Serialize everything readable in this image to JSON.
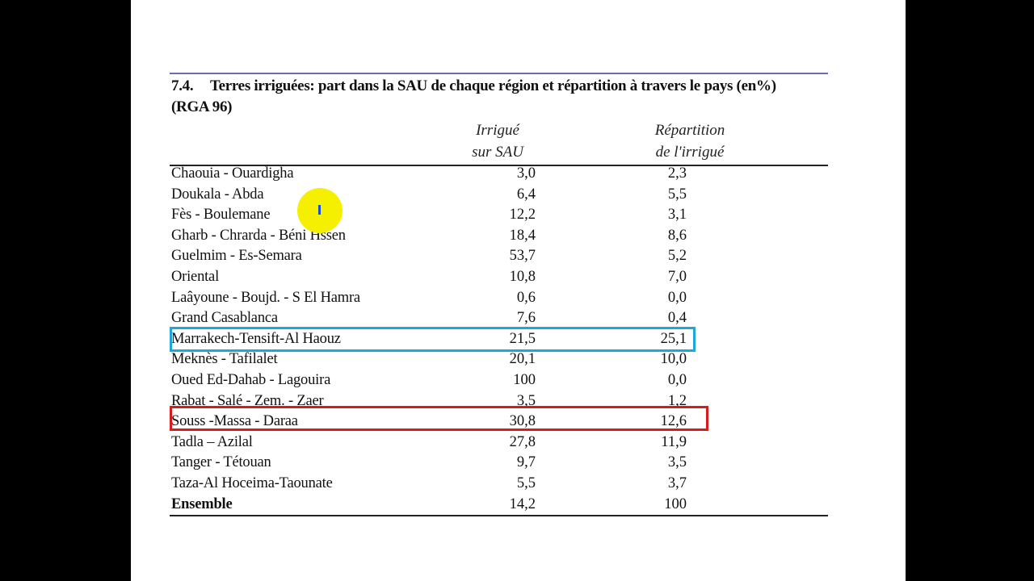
{
  "table": {
    "title_number": "7.4.",
    "title_text": "Terres irriguées: part dans la SAU de chaque région et répartition à travers le pays (en%)",
    "title_line2": "(RGA 96)",
    "col_irrigue_line1": "Irrigué",
    "col_irrigue_line2": "sur SAU",
    "col_repartition_line1": "Répartition",
    "col_repartition_line2": "de l'irrigué",
    "rows": [
      {
        "region": "Chaouia - Ouardigha",
        "irrigue": "3,0",
        "repartition": "2,3"
      },
      {
        "region": "Doukala - Abda",
        "irrigue": "6,4",
        "repartition": "5,5"
      },
      {
        "region": "Fès - Boulemane",
        "irrigue": "12,2",
        "repartition": "3,1"
      },
      {
        "region": "Gharb - Chrarda - Béni Hssen",
        "irrigue": "18,4",
        "repartition": "8,6"
      },
      {
        "region": "Guelmim - Es-Semara",
        "irrigue": "53,7",
        "repartition": "5,2"
      },
      {
        "region": "Oriental",
        "irrigue": "10,8",
        "repartition": "7,0"
      },
      {
        "region": "Laâyoune - Boujd. - S El Hamra",
        "irrigue": "0,6",
        "repartition": "0,0"
      },
      {
        "region": "Grand Casablanca",
        "irrigue": "7,6",
        "repartition": "0,4"
      },
      {
        "region": "Marrakech-Tensift-Al Haouz",
        "irrigue": "21,5",
        "repartition": "25,1"
      },
      {
        "region": "Meknès - Tafilalet",
        "irrigue": "20,1",
        "repartition": "10,0"
      },
      {
        "region": "Oued Ed-Dahab - Lagouira",
        "irrigue": "100",
        "repartition": "0,0"
      },
      {
        "region": "Rabat - Salé - Zem. - Zaer",
        "irrigue": "3,5",
        "repartition": "1,2"
      },
      {
        "region": "Souss -Massa - Daraa",
        "irrigue": "30,8",
        "repartition": "12,6"
      },
      {
        "region": "Tadla – Azilal",
        "irrigue": "27,8",
        "repartition": "11,9"
      },
      {
        "region": "Tanger - Tétouan",
        "irrigue": "9,7",
        "repartition": "3,5"
      },
      {
        "region": "Taza-Al Hoceima-Taounate",
        "irrigue": "5,5",
        "repartition": "3,7"
      },
      {
        "region": "Ensemble",
        "irrigue": "14,2",
        "repartition": "100"
      }
    ]
  },
  "highlights": {
    "blue_row": "Marrakech-Tensift-Al Haouz",
    "blue_color": "#1ea7dc",
    "red_row": "Souss -Massa - Daraa",
    "red_color": "#d81c1c"
  },
  "cursor": {
    "icon": "text-cursor-icon",
    "color": "#f5f000"
  }
}
